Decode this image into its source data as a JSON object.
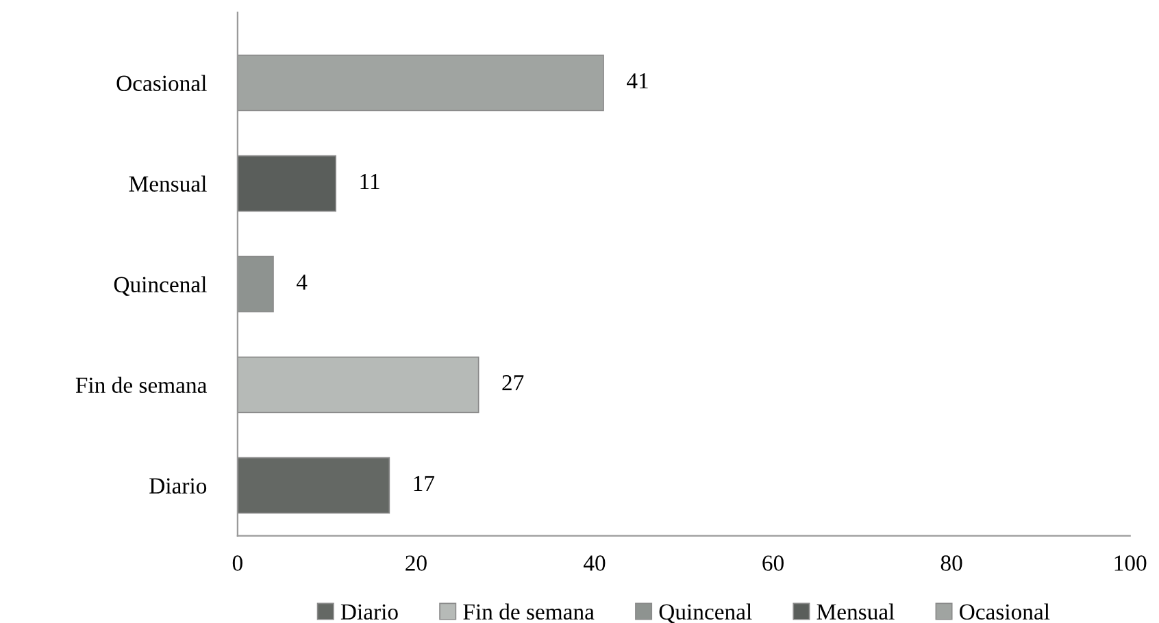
{
  "chart_data": {
    "type": "bar",
    "orientation": "horizontal",
    "categories": [
      "Ocasional",
      "Mensual",
      "Quincenal",
      "Fin de semana",
      "Diario"
    ],
    "series": [
      {
        "name": "Diario",
        "color": "#646864",
        "values": [
          null,
          null,
          null,
          null,
          17
        ]
      },
      {
        "name": "Fin de semana",
        "color": "#b6bab7",
        "values": [
          null,
          null,
          null,
          27,
          null
        ]
      },
      {
        "name": "Quincenal",
        "color": "#8e9390",
        "values": [
          null,
          null,
          4,
          null,
          null
        ]
      },
      {
        "name": "Mensual",
        "color": "#5a5e5b",
        "values": [
          null,
          11,
          null,
          null,
          null
        ]
      },
      {
        "name": "Ocasional",
        "color": "#a0a4a1",
        "values": [
          41,
          null,
          null,
          null,
          null
        ]
      }
    ],
    "xlim": [
      0,
      100
    ],
    "xticks": [
      0,
      20,
      40,
      60,
      80,
      100
    ],
    "data_labels": true,
    "grid": false,
    "legend": "bottom"
  }
}
